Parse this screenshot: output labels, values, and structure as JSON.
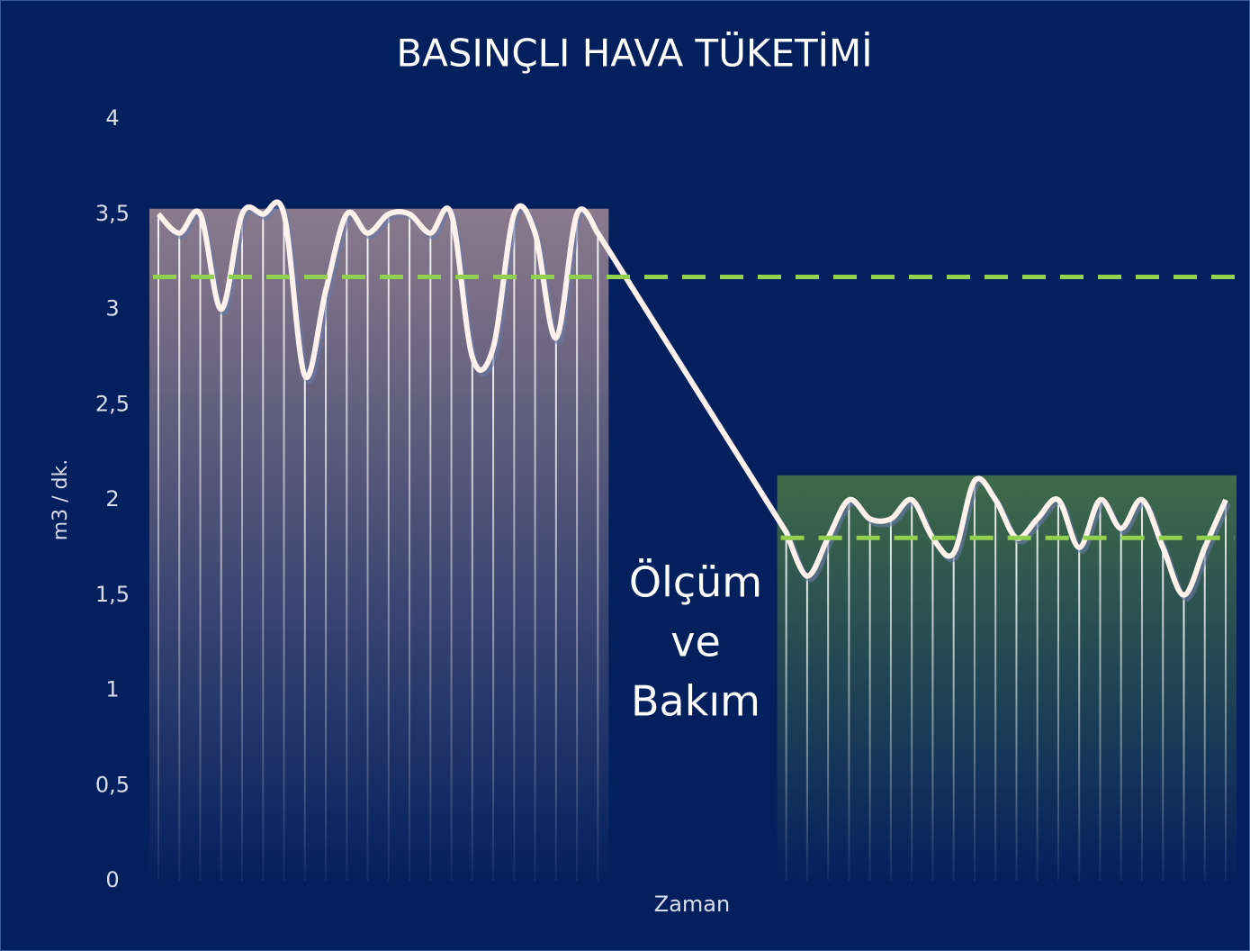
{
  "chart_data": {
    "type": "line",
    "title": "BASINÇLI HAVA TÜKETİMİ",
    "y_label": "m3 / dk.",
    "x_label": "Zaman",
    "annotation": [
      "Ölçüm",
      "ve",
      "Bakım"
    ],
    "x": [
      0,
      1,
      2,
      3,
      4,
      5,
      6,
      7,
      8,
      9,
      10,
      11,
      12,
      13,
      14,
      15,
      16,
      17,
      18,
      19,
      20,
      21,
      30,
      31,
      32,
      33,
      34,
      35,
      36,
      37,
      38,
      39,
      40,
      41,
      42,
      43,
      44,
      45,
      46,
      47,
      48,
      49,
      50,
      51
    ],
    "xlim": [
      0,
      51
    ],
    "series": [
      {
        "name": null,
        "color": "#fff2ec",
        "values": [
          3.5,
          3.4,
          3.5,
          3.0,
          3.5,
          3.5,
          3.5,
          2.65,
          3.1,
          3.5,
          3.4,
          3.5,
          3.5,
          3.4,
          3.5,
          2.75,
          2.8,
          3.5,
          3.4,
          2.85,
          3.5,
          3.4,
          1.83,
          1.6,
          1.8,
          2.0,
          1.9,
          1.9,
          2.0,
          1.8,
          1.72,
          2.1,
          2.0,
          1.8,
          1.9,
          2.0,
          1.75,
          2.0,
          1.85,
          2.0,
          1.75,
          1.5,
          1.75,
          2.0
        ]
      }
    ],
    "reference_lines": [
      {
        "value": 3.17,
        "from_x": 0,
        "color": "#92d050"
      },
      {
        "value": 1.8,
        "from_x": 30,
        "color": "#92d050"
      }
    ],
    "band_colors": [
      "#8a7a8c",
      "#3f6a4a"
    ],
    "ylim": [
      0,
      4
    ],
    "yticks": [
      0,
      {
        "value": 0.5,
        "label": "0,5"
      },
      1,
      {
        "value": 1.5,
        "label": "1,5"
      },
      2,
      {
        "value": 2.5,
        "label": "2,5"
      },
      3,
      {
        "value": 3.5,
        "label": "3,5"
      },
      4
    ],
    "grid": false
  }
}
